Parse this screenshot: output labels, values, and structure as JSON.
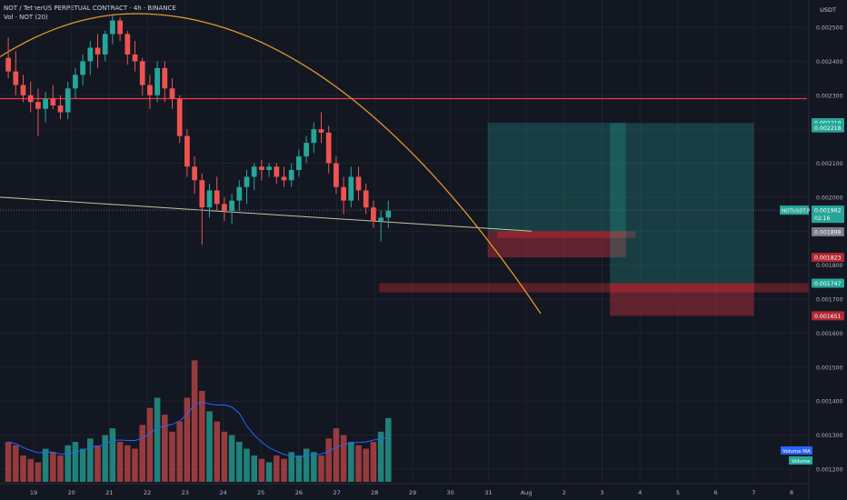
{
  "header": {
    "symbol_line": "NOT / TetherUS PERPETUAL CONTRACT · 4h · BINANCE",
    "indicator_line": "Vol · NOT (20)"
  },
  "price_axis": {
    "currency": "USDT",
    "ticks": [
      "0.002500",
      "0.002400",
      "0.002300",
      "0.002200",
      "0.002100",
      "0.002000",
      "0.001900",
      "0.001800",
      "0.001700",
      "0.001600",
      "0.001500",
      "0.001400",
      "0.001300",
      "0.001200"
    ],
    "tick_values": [
      0.0025,
      0.0024,
      0.0023,
      0.0022,
      0.0021,
      0.002,
      0.0019,
      0.0018,
      0.0017,
      0.0016,
      0.0015,
      0.0014,
      0.0013,
      0.0012
    ],
    "labels": [
      {
        "text": "0.002219",
        "value": 0.002219,
        "color": "#26a69a"
      },
      {
        "text": "0.002218",
        "value": 0.002204,
        "color": "#26a69a"
      },
      {
        "text": "0.001898",
        "value": 0.001898,
        "color": "#787b86"
      },
      {
        "text": "0.001823",
        "value": 0.001823,
        "color": "#b22833"
      },
      {
        "text": "0.001747",
        "value": 0.001747,
        "color": "#26a69a"
      },
      {
        "text": "0.001651",
        "value": 0.001651,
        "color": "#b22833"
      }
    ],
    "current": {
      "symbol": "NOTUSDT.P",
      "price": "0.001962",
      "countdown": "02:16",
      "value": 0.001962
    }
  },
  "time_axis": {
    "labels": [
      "19",
      "20",
      "21",
      "22",
      "23",
      "24",
      "25",
      "26",
      "27",
      "28",
      "29",
      "30",
      "31",
      "Aug",
      "2",
      "3",
      "4",
      "5",
      "6",
      "7",
      "8"
    ]
  },
  "volume_legend": {
    "ma_label": "Volume MA",
    "vol_label": "Volume"
  },
  "colors": {
    "up": "#26a69a",
    "down": "#ef5350",
    "background": "#131722",
    "ma": "#2962ff",
    "curve": "#e0962e",
    "resistance": "#f23645"
  },
  "chart_data": {
    "type": "candlestick",
    "timeframe": "4h",
    "horizontal_lines": [
      {
        "value": 0.00229,
        "color": "#f23645"
      }
    ],
    "candles": [
      [
        0.00241,
        0.00247,
        0.00235,
        0.00237
      ],
      [
        0.00237,
        0.00243,
        0.0023,
        0.00233
      ],
      [
        0.00233,
        0.00236,
        0.00228,
        0.0023
      ],
      [
        0.0023,
        0.00234,
        0.00225,
        0.00228
      ],
      [
        0.00228,
        0.00232,
        0.00218,
        0.00226
      ],
      [
        0.00226,
        0.00231,
        0.00222,
        0.00229
      ],
      [
        0.00229,
        0.00233,
        0.00226,
        0.00227
      ],
      [
        0.00227,
        0.0023,
        0.00223,
        0.00225
      ],
      [
        0.00225,
        0.00234,
        0.00223,
        0.00232
      ],
      [
        0.00232,
        0.00238,
        0.00229,
        0.00236
      ],
      [
        0.00236,
        0.00242,
        0.00233,
        0.0024
      ],
      [
        0.0024,
        0.00246,
        0.00236,
        0.00244
      ],
      [
        0.00244,
        0.00248,
        0.00238,
        0.00242
      ],
      [
        0.00242,
        0.00249,
        0.0024,
        0.00248
      ],
      [
        0.00248,
        0.00254,
        0.00245,
        0.00252
      ],
      [
        0.00252,
        0.00253,
        0.00246,
        0.00248
      ],
      [
        0.00248,
        0.00249,
        0.00239,
        0.00242
      ],
      [
        0.00242,
        0.00246,
        0.00237,
        0.0024
      ],
      [
        0.0024,
        0.00241,
        0.0023,
        0.00233
      ],
      [
        0.00233,
        0.00236,
        0.00226,
        0.0023
      ],
      [
        0.0023,
        0.0024,
        0.00228,
        0.00238
      ],
      [
        0.00238,
        0.0024,
        0.00228,
        0.00232
      ],
      [
        0.00232,
        0.00235,
        0.00226,
        0.00229
      ],
      [
        0.00229,
        0.0023,
        0.00216,
        0.00218
      ],
      [
        0.00218,
        0.0022,
        0.00206,
        0.00209
      ],
      [
        0.00209,
        0.00212,
        0.00201,
        0.00205
      ],
      [
        0.00205,
        0.00207,
        0.00186,
        0.00197
      ],
      [
        0.00197,
        0.00204,
        0.00194,
        0.00202
      ],
      [
        0.00202,
        0.00206,
        0.00196,
        0.00198
      ],
      [
        0.00198,
        0.002,
        0.00193,
        0.00196
      ],
      [
        0.00196,
        0.00201,
        0.00192,
        0.00199
      ],
      [
        0.00199,
        0.00205,
        0.00196,
        0.00203
      ],
      [
        0.00203,
        0.00208,
        0.00198,
        0.00206
      ],
      [
        0.00206,
        0.0021,
        0.00202,
        0.00209
      ],
      [
        0.00209,
        0.00211,
        0.00205,
        0.00208
      ],
      [
        0.00208,
        0.0021,
        0.00206,
        0.00209
      ],
      [
        0.00209,
        0.0021,
        0.00204,
        0.00206
      ],
      [
        0.00206,
        0.00209,
        0.00203,
        0.00205
      ],
      [
        0.00205,
        0.0021,
        0.00203,
        0.00208
      ],
      [
        0.00208,
        0.00214,
        0.00206,
        0.00212
      ],
      [
        0.00212,
        0.00218,
        0.0021,
        0.00216
      ],
      [
        0.00216,
        0.00222,
        0.00213,
        0.0022
      ],
      [
        0.0022,
        0.00225,
        0.00216,
        0.00219
      ],
      [
        0.00219,
        0.00221,
        0.00207,
        0.0021
      ],
      [
        0.0021,
        0.00212,
        0.00201,
        0.00203
      ],
      [
        0.00203,
        0.00206,
        0.00195,
        0.00199
      ],
      [
        0.00199,
        0.00209,
        0.00197,
        0.00206
      ],
      [
        0.00206,
        0.00209,
        0.00199,
        0.00202
      ],
      [
        0.00202,
        0.00204,
        0.00195,
        0.00197
      ],
      [
        0.00197,
        0.00199,
        0.00191,
        0.00193
      ],
      [
        0.00193,
        0.00196,
        0.00187,
        0.00194
      ],
      [
        0.00194,
        0.00199,
        0.00191,
        0.00196
      ]
    ],
    "volumes": [
      0.00128,
      0.00127,
      0.00124,
      0.00123,
      0.00122,
      0.00126,
      0.00125,
      0.00124,
      0.00127,
      0.00128,
      0.00126,
      0.00129,
      0.00127,
      0.0013,
      0.00132,
      0.00128,
      0.00127,
      0.00126,
      0.00133,
      0.00138,
      0.00141,
      0.00136,
      0.00131,
      0.00134,
      0.00141,
      0.00152,
      0.00143,
      0.00137,
      0.00134,
      0.00131,
      0.0013,
      0.00128,
      0.00126,
      0.00124,
      0.00123,
      0.00122,
      0.00124,
      0.00123,
      0.00125,
      0.00124,
      0.00126,
      0.00125,
      0.00124,
      0.00129,
      0.00132,
      0.0013,
      0.00128,
      0.00127,
      0.00126,
      0.00128,
      0.00131,
      0.00135
    ],
    "positions": [
      {
        "entry": 0.0019,
        "target": 0.002219,
        "stop": 0.001823,
        "start": 24.5,
        "end": 31.5
      },
      {
        "entry": 0.001747,
        "target": 0.002218,
        "stop": 0.001651,
        "start": 30.7,
        "end": 38.0
      }
    ],
    "zones": [
      {
        "top": 0.0019,
        "bottom": 0.00188,
        "start": 25.0,
        "end": 32.0
      },
      {
        "top": 0.001747,
        "bottom": 0.00172,
        "start": 19.0,
        "end": 43.0
      }
    ]
  }
}
